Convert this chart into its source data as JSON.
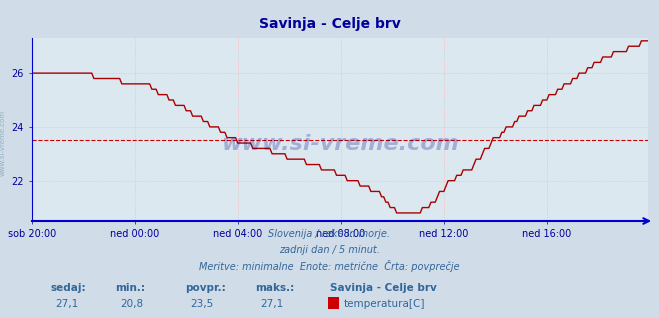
{
  "title": "Savinja - Celje brv",
  "title_color": "#000099",
  "title_fontsize": 10,
  "bg_color": "#d0dce8",
  "plot_bg_color": "#dce8f0",
  "grid_color": "#ffaaaa",
  "grid_style": ":",
  "line_color": "#aa0000",
  "line_width": 1.0,
  "avg_line_color": "#cc0000",
  "avg_line_style": "--",
  "avg_value": 23.5,
  "x_min": 0,
  "x_max": 287,
  "y_min": 20.5,
  "y_max": 27.3,
  "yticks": [
    22,
    24,
    26
  ],
  "tick_color": "#000099",
  "xtick_labels": [
    "sob 20:00",
    "ned 00:00",
    "ned 04:00",
    "ned 08:00",
    "ned 12:00",
    "ned 16:00"
  ],
  "xtick_positions": [
    0,
    48,
    96,
    144,
    192,
    240
  ],
  "watermark": "www.si-vreme.com",
  "watermark_color": "#000080",
  "bottom_line1": "Slovenija / reke in morje.",
  "bottom_line2": "zadnji dan / 5 minut.",
  "bottom_line3": "Meritve: minimalne  Enote: metrične  Črta: povprečje",
  "bottom_color": "#336699",
  "footer_labels": [
    "sedaj:",
    "min.:",
    "povpr.:",
    "maks.:"
  ],
  "footer_values": [
    "27,1",
    "20,8",
    "23,5",
    "27,1"
  ],
  "footer_series_name": "Savinja - Celje brv",
  "footer_series_label": "temperatura[C]",
  "footer_swatch_color": "#cc0000",
  "axis_spine_color": "#0000cc",
  "left_label": "www.si-vreme.com",
  "left_label_color": "#6699aa"
}
